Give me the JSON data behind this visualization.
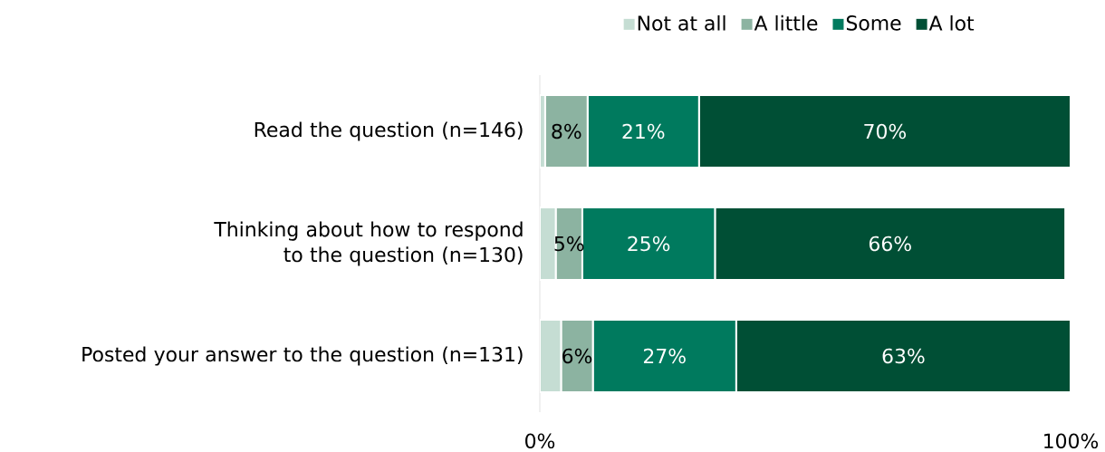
{
  "chart_data": {
    "type": "bar",
    "orientation": "horizontal",
    "stacked": true,
    "categories": [
      "Read the question (n=146)",
      "Thinking about how to respond to the question (n=130)",
      "Posted your answer to the question (n=131)"
    ],
    "series": [
      {
        "name": "Not at all",
        "color": "#c5ddd3",
        "values": [
          1,
          3,
          4
        ]
      },
      {
        "name": "A little",
        "color": "#8cb3a1",
        "values": [
          8,
          5,
          6
        ],
        "value_labels": [
          "8%",
          "5%",
          "6%"
        ]
      },
      {
        "name": "Some",
        "color": "#007a5e",
        "values": [
          21,
          25,
          27
        ],
        "value_labels": [
          "21%",
          "25%",
          "27%"
        ]
      },
      {
        "name": "A lot",
        "color": "#004f35",
        "values": [
          70,
          66,
          63
        ],
        "value_labels": [
          "70%",
          "66%",
          "63%"
        ]
      }
    ],
    "xlim": [
      0,
      100
    ],
    "xticks": [
      {
        "value": 0,
        "label": "0%"
      },
      {
        "value": 100,
        "label": "100%"
      }
    ],
    "legend": "top"
  }
}
